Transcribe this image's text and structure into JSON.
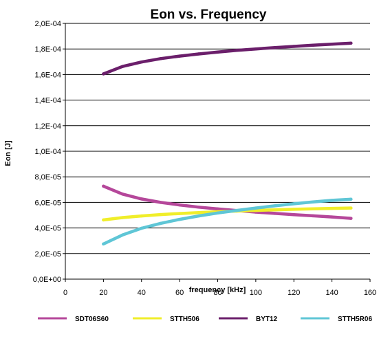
{
  "chart_data": {
    "type": "line",
    "title": "Eon vs. Frequency",
    "xlabel": "frequency [kHz]",
    "ylabel": "Eon [J]",
    "xlim": [
      0,
      160
    ],
    "ylim": [
      0,
      0.0002
    ],
    "x_ticks": [
      0,
      20,
      40,
      60,
      80,
      100,
      120,
      140,
      160
    ],
    "x_tick_labels": [
      "0",
      "20",
      "40",
      "60",
      "80",
      "100",
      "120",
      "140",
      "160"
    ],
    "y_ticks": [
      0,
      2e-05,
      4e-05,
      6e-05,
      8e-05,
      0.0001,
      0.00012,
      0.00014,
      0.00016,
      0.00018,
      0.0002
    ],
    "y_tick_labels": [
      "0,0E+00",
      "2,0E-05",
      "4,0E-05",
      "6,0E-05",
      "8,0E-05",
      "1,0E-04",
      "1,2E-04",
      "1,4E-04",
      "1,6E-04",
      "1,8E-04",
      "2,0E-04"
    ],
    "grid": "horizontal",
    "legend_position": "bottom",
    "x": [
      20,
      30,
      40,
      50,
      60,
      70,
      80,
      90,
      100,
      110,
      120,
      130,
      140,
      150
    ],
    "series": [
      {
        "name": "SDT06S60",
        "color": "#b5479a",
        "values": [
          7.27e-05,
          6.65e-05,
          6.27e-05,
          6e-05,
          5.8e-05,
          5.63e-05,
          5.49e-05,
          5.36e-05,
          5.24e-05,
          5.14e-05,
          5.04e-05,
          4.95e-05,
          4.86e-05,
          4.75e-05
        ]
      },
      {
        "name": "STTH506",
        "color": "#f0ee2a",
        "values": [
          4.63e-05,
          4.81e-05,
          4.94e-05,
          5.05e-05,
          5.13e-05,
          5.2e-05,
          5.27e-05,
          5.32e-05,
          5.37e-05,
          5.42e-05,
          5.46e-05,
          5.5e-05,
          5.53e-05,
          5.56e-05
        ]
      },
      {
        "name": "BYT12",
        "color": "#6b1f6b",
        "values": [
          0.0001605,
          0.0001663,
          0.0001698,
          0.0001724,
          0.0001744,
          0.0001761,
          0.0001776,
          0.0001789,
          0.00018,
          0.0001811,
          0.000182,
          0.0001829,
          0.0001837,
          0.0001845
        ]
      },
      {
        "name": "STTH5R06",
        "color": "#5fc6d6",
        "values": [
          2.75e-05,
          3.45e-05,
          3.98e-05,
          4.36e-05,
          4.67e-05,
          4.94e-05,
          5.17e-05,
          5.37e-05,
          5.56e-05,
          5.73e-05,
          5.89e-05,
          6.03e-05,
          6.16e-05,
          6.25e-05
        ]
      }
    ]
  }
}
